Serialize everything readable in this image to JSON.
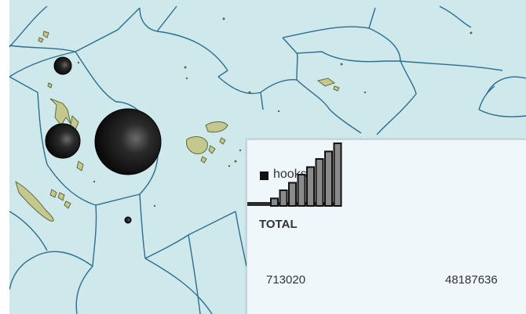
{
  "colors": {
    "ocean": "#cfe8ec",
    "border": "#2c6f8e",
    "land": "#c4c88e",
    "land_outline": "#5e6a3a",
    "marker": "#111111"
  },
  "legend": {
    "series_label": "hooks",
    "total_label": "TOTAL",
    "min_value": "713020",
    "max_value": "48187636",
    "histogram_levels": [
      0.12,
      0.25,
      0.37,
      0.5,
      0.62,
      0.75,
      0.87,
      1.0
    ]
  },
  "markers": [
    {
      "name": "marker-north-small"
    },
    {
      "name": "marker-mid-left"
    },
    {
      "name": "marker-large"
    },
    {
      "name": "marker-south-tiny"
    }
  ]
}
